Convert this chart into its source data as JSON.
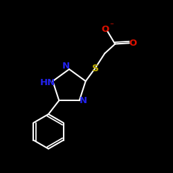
{
  "background_color": "#000000",
  "bond_color": "#ffffff",
  "N_color": "#2222ee",
  "O_color": "#dd1100",
  "S_color": "#bbaa00",
  "figsize": [
    2.5,
    2.5
  ],
  "dpi": 100,
  "xlim": [
    0,
    10
  ],
  "ylim": [
    0,
    10
  ]
}
